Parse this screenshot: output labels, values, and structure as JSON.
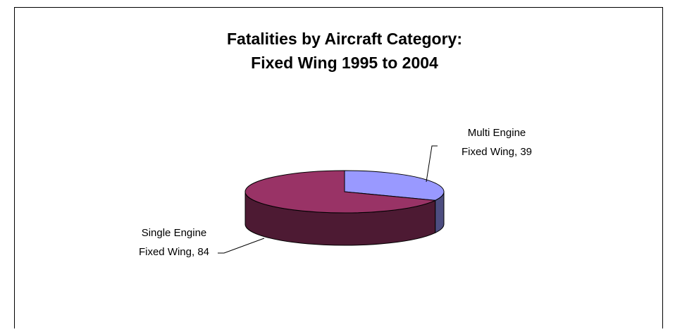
{
  "chart_data": {
    "type": "pie3d",
    "title": [
      "Fatalities by Aircraft Category:",
      "Fixed Wing 1995 to 2004"
    ],
    "values": [
      39,
      84
    ],
    "value_labels": [
      [
        "Multi Engine",
        "Fixed Wing, 39"
      ],
      [
        "Single Engine",
        "Fixed Wing, 84"
      ]
    ],
    "colors": [
      "#9999ff",
      "#993366"
    ],
    "side_colors": [
      "#4d4d80",
      "#4d1a33"
    ]
  }
}
